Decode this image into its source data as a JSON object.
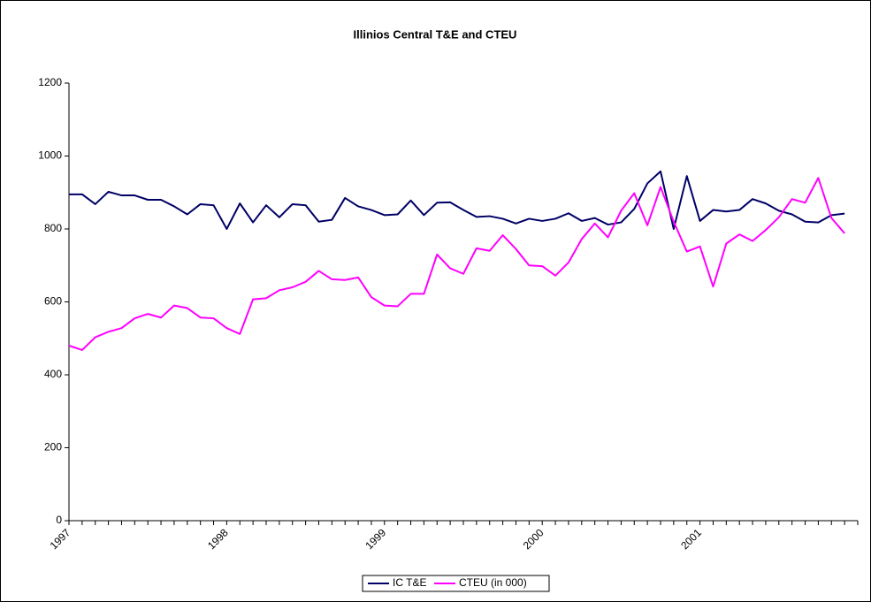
{
  "chart_data": {
    "type": "line",
    "title": "Illinios Central T&E and CTEU",
    "categories": [
      "1997",
      null,
      null,
      null,
      null,
      null,
      null,
      null,
      null,
      null,
      null,
      null,
      "1998",
      null,
      null,
      null,
      null,
      null,
      null,
      null,
      null,
      null,
      null,
      null,
      "1999",
      null,
      null,
      null,
      null,
      null,
      null,
      null,
      null,
      null,
      null,
      null,
      "2000",
      null,
      null,
      null,
      null,
      null,
      null,
      null,
      null,
      null,
      null,
      null,
      "2001",
      null,
      null,
      null,
      null,
      null,
      null,
      null,
      null,
      null,
      null,
      null
    ],
    "series": [
      {
        "name": "IC T&E",
        "color": "#000066",
        "values": [
          895,
          895,
          868,
          902,
          892,
          892,
          880,
          880,
          862,
          840,
          868,
          865,
          800,
          870,
          818,
          865,
          832,
          868,
          865,
          820,
          825,
          885,
          862,
          852,
          838,
          840,
          878,
          838,
          872,
          873,
          852,
          833,
          835,
          828,
          815,
          828,
          822,
          828,
          843,
          822,
          830,
          812,
          818,
          855,
          925,
          958,
          800,
          945,
          822,
          852,
          848,
          852,
          882,
          870,
          850,
          840,
          820,
          818,
          838,
          842
        ]
      },
      {
        "name": "CTEU (in 000)",
        "color": "#ff00ff",
        "values": [
          480,
          468,
          503,
          518,
          528,
          555,
          567,
          557,
          590,
          583,
          557,
          555,
          528,
          512,
          607,
          610,
          632,
          640,
          655,
          685,
          662,
          660,
          667,
          613,
          590,
          588,
          622,
          622,
          730,
          692,
          677,
          747,
          740,
          783,
          745,
          700,
          698,
          672,
          708,
          772,
          815,
          777,
          850,
          898,
          810,
          915,
          820,
          738,
          752,
          642,
          760,
          785,
          767,
          797,
          832,
          882,
          872,
          940,
          830,
          788
        ]
      }
    ],
    "ylim": [
      0,
      1200
    ],
    "yticks": [
      0,
      200,
      400,
      600,
      800,
      1000,
      1200
    ],
    "legend": "bottom"
  }
}
